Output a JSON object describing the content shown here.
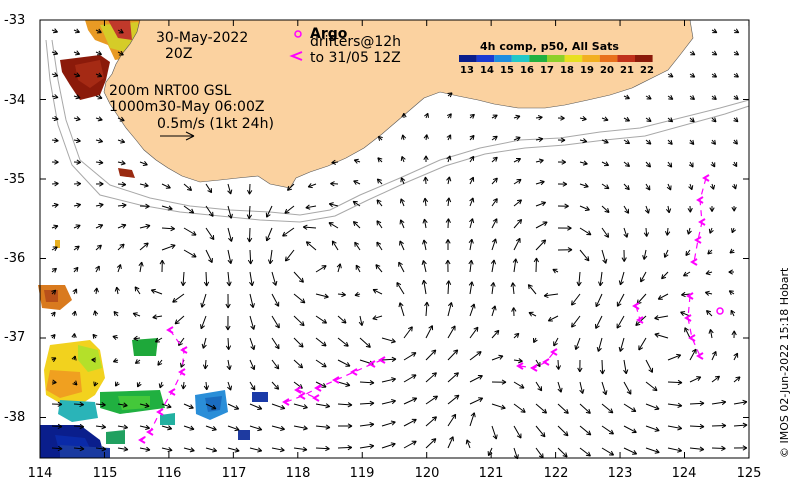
{
  "map": {
    "date": "30-May-2022",
    "time_label": "20Z",
    "argo_label": "Argo",
    "drifters_line1": "drifters@12h",
    "drifters_line2": "to 31/05 12Z",
    "contour_line1": "200m  NRT00 GSL",
    "contour_line2": "1000m30-May 06:00Z",
    "scale_label": "0.5m/s (1kt 24h)",
    "colorbar_title": "4h comp, p50, All Sats",
    "colorbar_ticks": [
      "13",
      "14",
      "15",
      "16",
      "17",
      "18",
      "19",
      "20",
      "21",
      "22"
    ],
    "credit": "© IMOS 02-Jun-2022 15:18 Hobart",
    "x_ticks": [
      "114",
      "115",
      "116",
      "117",
      "118",
      "119",
      "120",
      "121",
      "122",
      "123",
      "124",
      "125"
    ],
    "y_ticks": [
      "-33",
      "-34",
      "-35",
      "-36",
      "-37",
      "-38"
    ],
    "colors": {
      "land": "#fbd2a0",
      "drifter": "#ff00ff",
      "contour": "#a8a8a8"
    }
  }
}
